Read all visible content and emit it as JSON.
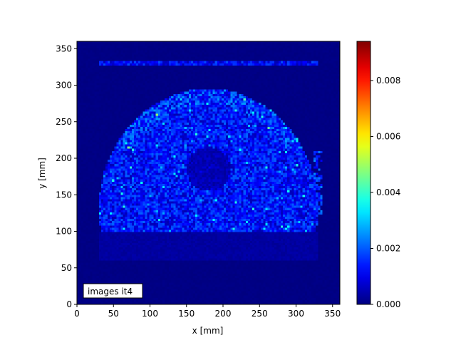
{
  "chart_data": {
    "type": "heatmap",
    "title": "",
    "xlabel": "x [mm]",
    "ylabel": "y [mm]",
    "xlim": [
      0,
      360
    ],
    "ylim": [
      0,
      360
    ],
    "x_ticks": [
      0,
      50,
      100,
      150,
      200,
      250,
      300,
      350
    ],
    "y_ticks": [
      0,
      50,
      100,
      150,
      200,
      250,
      300,
      350
    ],
    "colormap": "jet",
    "colorbar": {
      "min": 0.0,
      "max": 0.0094,
      "ticks": [
        0.0,
        0.002,
        0.004,
        0.006,
        0.008
      ],
      "tick_labels": [
        "0.000",
        "0.002",
        "0.004",
        "0.006",
        "0.008"
      ]
    },
    "annotation": "images it4",
    "grid": false,
    "structure": {
      "half_disk": {
        "center_x": 180,
        "center_y": 130,
        "radius_x": 150,
        "radius_y": 165,
        "mean_value": 0.0013
      },
      "cold_spot": {
        "center_x": 180,
        "center_y": 185,
        "radius": 30,
        "mean_value": 0.0005
      },
      "hot_line": {
        "y": 331,
        "x_range": [
          30,
          330
        ],
        "mean_value": 0.0012
      },
      "background_value": 0.0
    },
    "pixel_size_mm": 3
  }
}
